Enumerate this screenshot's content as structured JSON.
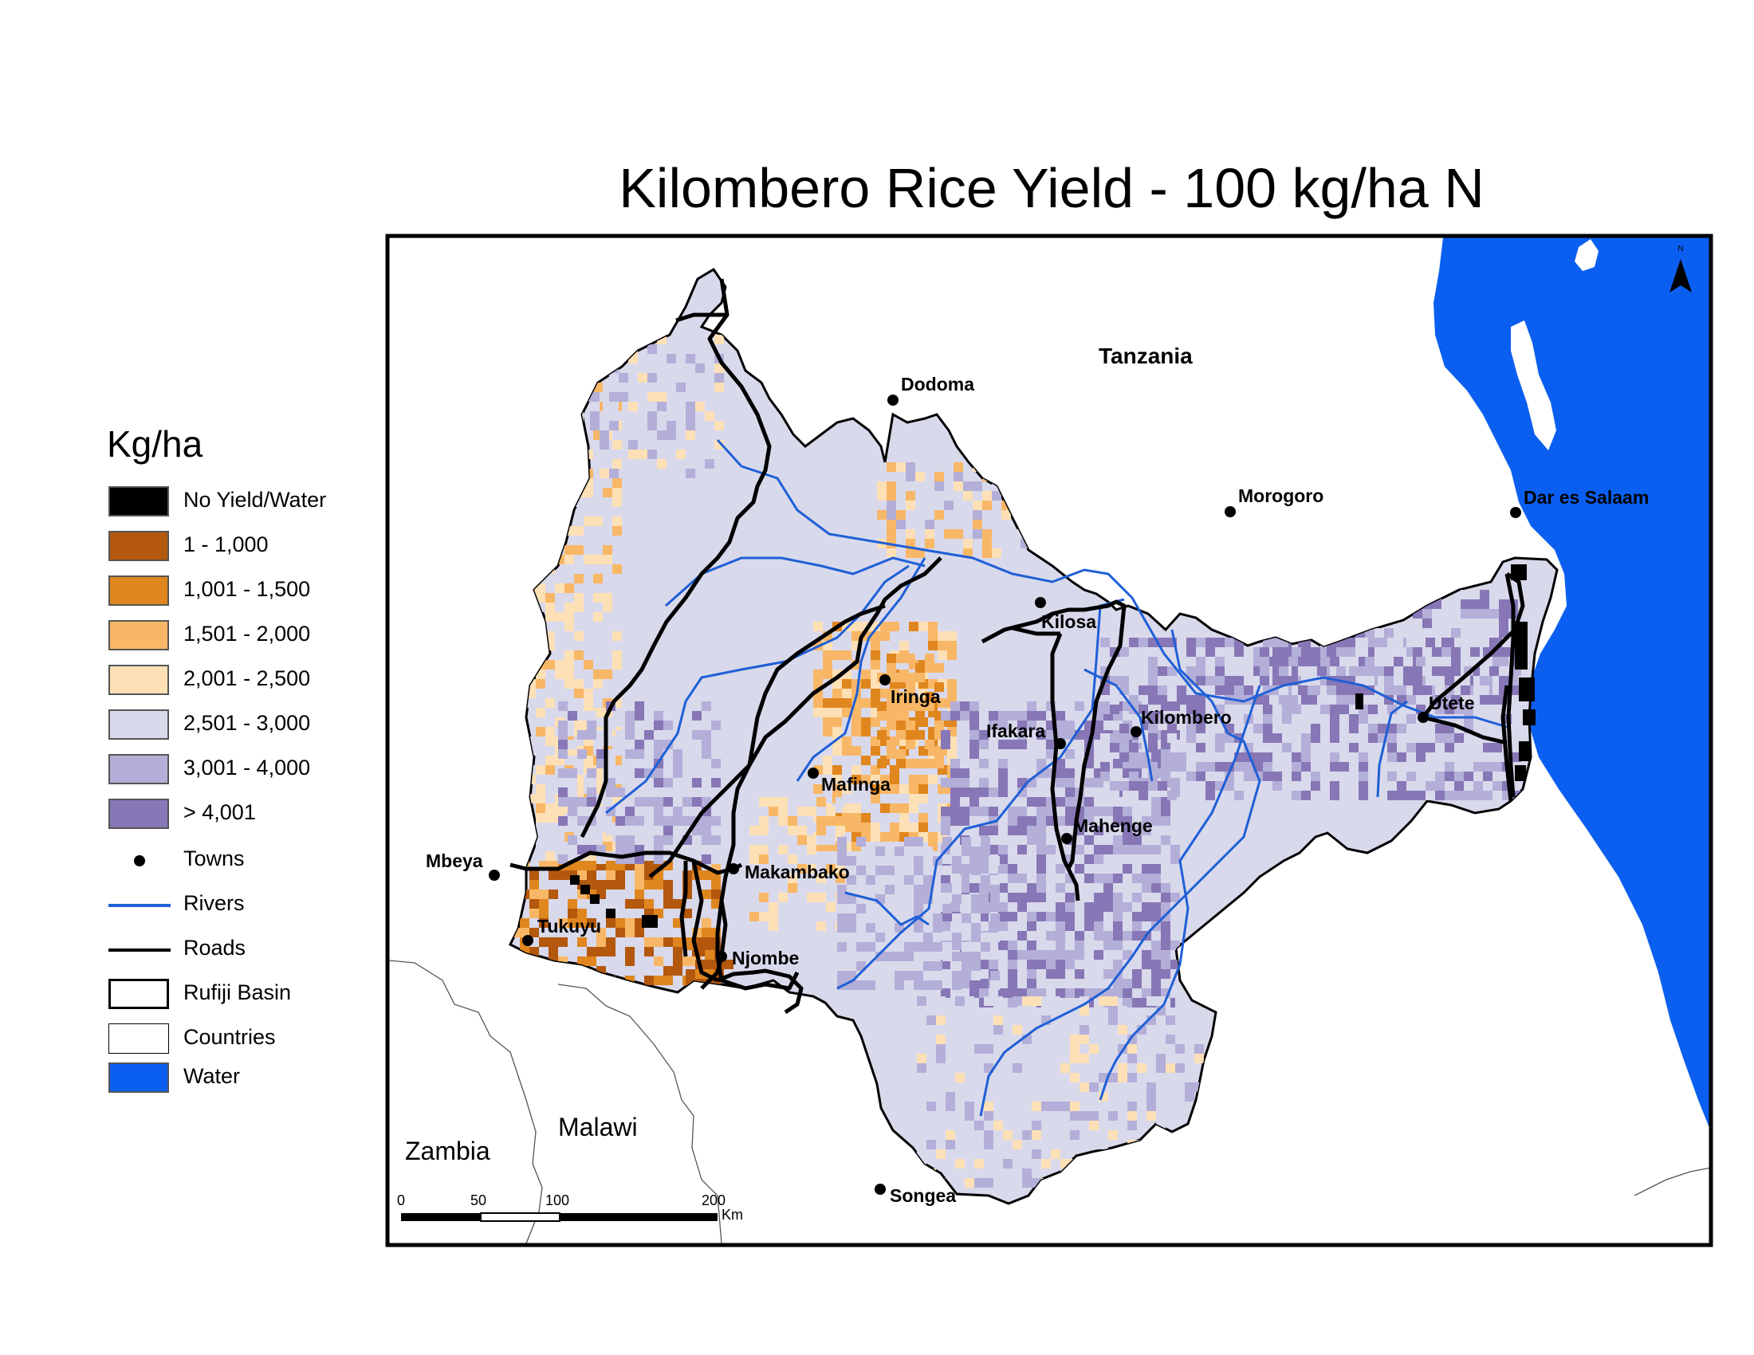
{
  "title": "Kilombero Rice Yield - 100 kg/ha N",
  "colors": {
    "no_yield": "#000000",
    "y1": "#b3580d",
    "y2": "#e0861f",
    "y3": "#f8b766",
    "y4": "#fde0b6",
    "y5": "#d9d9ec",
    "y6": "#b3afd8",
    "y7": "#8777b6",
    "towns": "#000000",
    "rivers": "#1f5fd6",
    "roads": "#000000",
    "water": "#0b5ff0"
  },
  "legend": {
    "title": "Kg/ha",
    "items": [
      {
        "label": "No Yield/Water",
        "type": "swatch",
        "color_key": "no_yield"
      },
      {
        "label": "1 - 1,000",
        "type": "swatch",
        "color_key": "y1"
      },
      {
        "label": "1,001 - 1,500",
        "type": "swatch",
        "color_key": "y2"
      },
      {
        "label": "1,501 - 2,000",
        "type": "swatch",
        "color_key": "y3"
      },
      {
        "label": "2,001 - 2,500",
        "type": "swatch",
        "color_key": "y4"
      },
      {
        "label": "2,501 - 3,000",
        "type": "swatch",
        "color_key": "y5"
      },
      {
        "label": "3,001 - 4,000",
        "type": "swatch",
        "color_key": "y6"
      },
      {
        "label": "> 4,001",
        "type": "swatch",
        "color_key": "y7"
      },
      {
        "label": "Towns",
        "type": "dot",
        "color_key": "towns"
      },
      {
        "label": "Rivers",
        "type": "line",
        "color_key": "rivers"
      },
      {
        "label": "Roads",
        "type": "line",
        "color_key": "roads"
      },
      {
        "label": "Rufiji Basin",
        "type": "outline",
        "color_key": "roads"
      },
      {
        "label": "Countries",
        "type": "outline-thin",
        "color_key": "roads"
      },
      {
        "label": "Water",
        "type": "swatch",
        "color_key": "water"
      }
    ]
  },
  "map": {
    "countries": {
      "tanzania": "Tanzania",
      "zambia": "Zambia",
      "malawi": "Malawi"
    },
    "towns": {
      "dodoma": "Dodoma",
      "morogoro": "Morogoro",
      "dar_es_salaam": "Dar es Salaam",
      "kilosa": "Kilosa",
      "iringa": "Iringa",
      "ifakara": "Ifakara",
      "kilombero": "Kilombero",
      "utete": "Utete",
      "mafinga": "Mafinga",
      "mahenge": "Mahenge",
      "mbeya": "Mbeya",
      "makambako": "Makambako",
      "tukuyu": "Tukuyu",
      "njombe": "Njombe",
      "songea": "Songea"
    },
    "north_arrow": "N",
    "scale_bar": {
      "ticks": [
        "0",
        "50",
        "100",
        "200"
      ],
      "unit": "Km"
    }
  }
}
